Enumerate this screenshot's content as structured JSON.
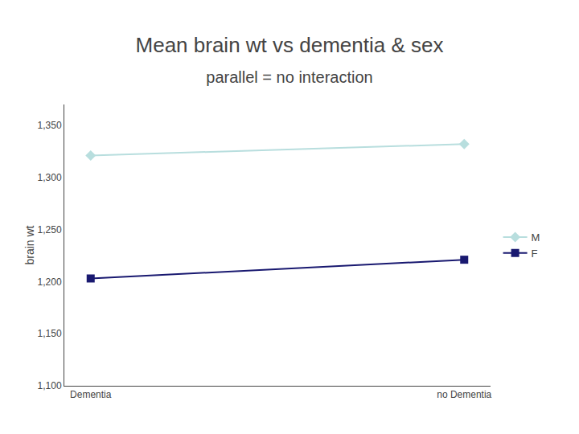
{
  "chart_data": {
    "type": "line",
    "title": "Mean brain wt vs dementia & sex",
    "subtitle": "parallel = no interaction",
    "categories": [
      "Dementia",
      "no Dementia"
    ],
    "series": [
      {
        "name": "M",
        "color": "#b8dede",
        "marker": "diamond",
        "values": [
          1321,
          1332
        ]
      },
      {
        "name": "F",
        "color": "#191970",
        "marker": "square",
        "values": [
          1203,
          1221
        ]
      }
    ],
    "y_label": "brain wt",
    "ylim": [
      1100,
      1370
    ],
    "yticks": [
      {
        "value": 1100,
        "label": "1,100"
      },
      {
        "value": 1150,
        "label": "1,150"
      },
      {
        "value": 1200,
        "label": "1,200"
      },
      {
        "value": 1250,
        "label": "1,250"
      },
      {
        "value": 1300,
        "label": "1,300"
      },
      {
        "value": 1350,
        "label": "1,350"
      }
    ],
    "grid": false,
    "legend": "right"
  }
}
